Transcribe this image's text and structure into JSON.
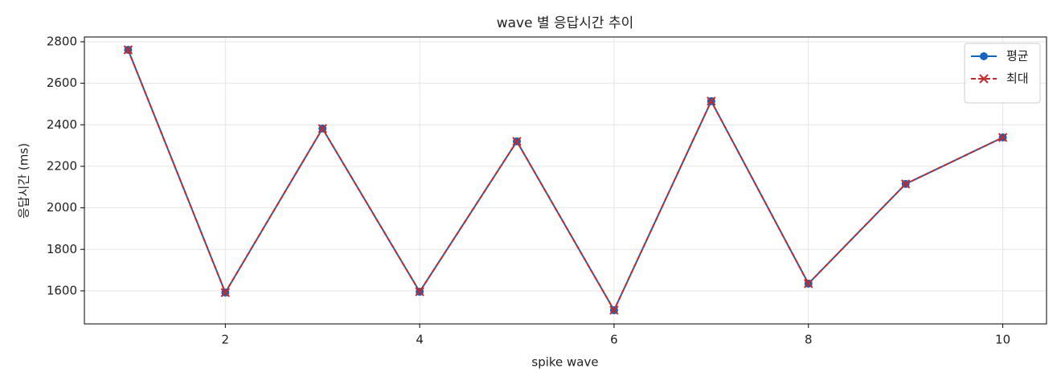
{
  "chart_data": {
    "type": "line",
    "title": "wave 별 응답시간 추이",
    "xlabel": "spike wave",
    "ylabel": "응답시간 (ms)",
    "x": [
      1,
      2,
      3,
      4,
      5,
      6,
      7,
      8,
      9,
      10
    ],
    "series": [
      {
        "name": "평균",
        "color": "#1565c0",
        "marker": "o",
        "dash": "solid",
        "values": [
          2761,
          1592,
          2382,
          1596,
          2320,
          1507,
          2514,
          1635,
          2115,
          2339
        ]
      },
      {
        "name": "최대",
        "color": "#c62828",
        "marker": "x",
        "dash": "dashed",
        "values": [
          2761,
          1592,
          2382,
          1596,
          2320,
          1507,
          2514,
          1635,
          2115,
          2339
        ]
      }
    ],
    "xlim": [
      0.55,
      10.45
    ],
    "xticks": [
      2,
      4,
      6,
      8,
      10
    ],
    "ylim": [
      1441,
      2823
    ],
    "yticks": [
      1600,
      1800,
      2000,
      2200,
      2400,
      2600,
      2800
    ],
    "grid": true,
    "legend": "upper-right"
  }
}
